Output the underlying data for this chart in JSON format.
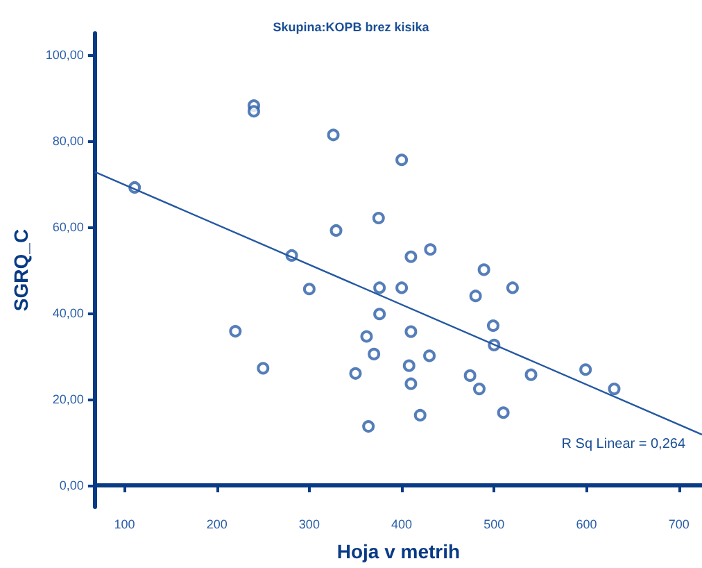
{
  "chart_data": {
    "type": "scatter",
    "title": "Skupina:KOPB brez kisika",
    "xlabel": "Hoja v metrih",
    "ylabel": "SGRQ_C",
    "xlim": [
      68,
      725
    ],
    "xticks": [
      100,
      200,
      300,
      400,
      500,
      600,
      700
    ],
    "ylim": [
      -5,
      105
    ],
    "yticks": [
      {
        "value": 0,
        "label": "0,00"
      },
      {
        "value": 20,
        "label": "20,00"
      },
      {
        "value": 40,
        "label": "40,00"
      },
      {
        "value": 60,
        "label": "60,00"
      },
      {
        "value": 80,
        "label": "80,00"
      },
      {
        "value": 100,
        "label": "100,00"
      }
    ],
    "grid": false,
    "marker": "circle",
    "annotations": [
      "R Sq Linear = 0,264"
    ],
    "series": [
      {
        "color": "#2a5ea8",
        "x": [
          111,
          240,
          240,
          326,
          329,
          281,
          400,
          375,
          410,
          431,
          489,
          376,
          400,
          480,
          520,
          376,
          499,
          362,
          410,
          500,
          370,
          430,
          408,
          350,
          474,
          540,
          599,
          410,
          484,
          630,
          510,
          420,
          364,
          220,
          250,
          300
        ],
        "values": [
          69.2,
          88.2,
          86.9,
          81.4,
          59.2,
          53.4,
          75.6,
          62.1,
          53.1,
          54.8,
          50.1,
          45.9,
          45.9,
          44.0,
          45.9,
          39.8,
          37.1,
          34.6,
          35.7,
          32.6,
          30.5,
          30.1,
          27.8,
          26.0,
          25.5,
          25.7,
          26.9,
          23.6,
          22.4,
          22.4,
          16.9,
          16.3,
          13.7,
          35.8,
          27.2,
          45.6
        ]
      },
      {
        "type": "line",
        "color": "#2458a3",
        "marker": "none",
        "line_style": "solid",
        "x": [
          68,
          725
        ],
        "values": [
          72.8,
          11.8
        ]
      }
    ]
  }
}
